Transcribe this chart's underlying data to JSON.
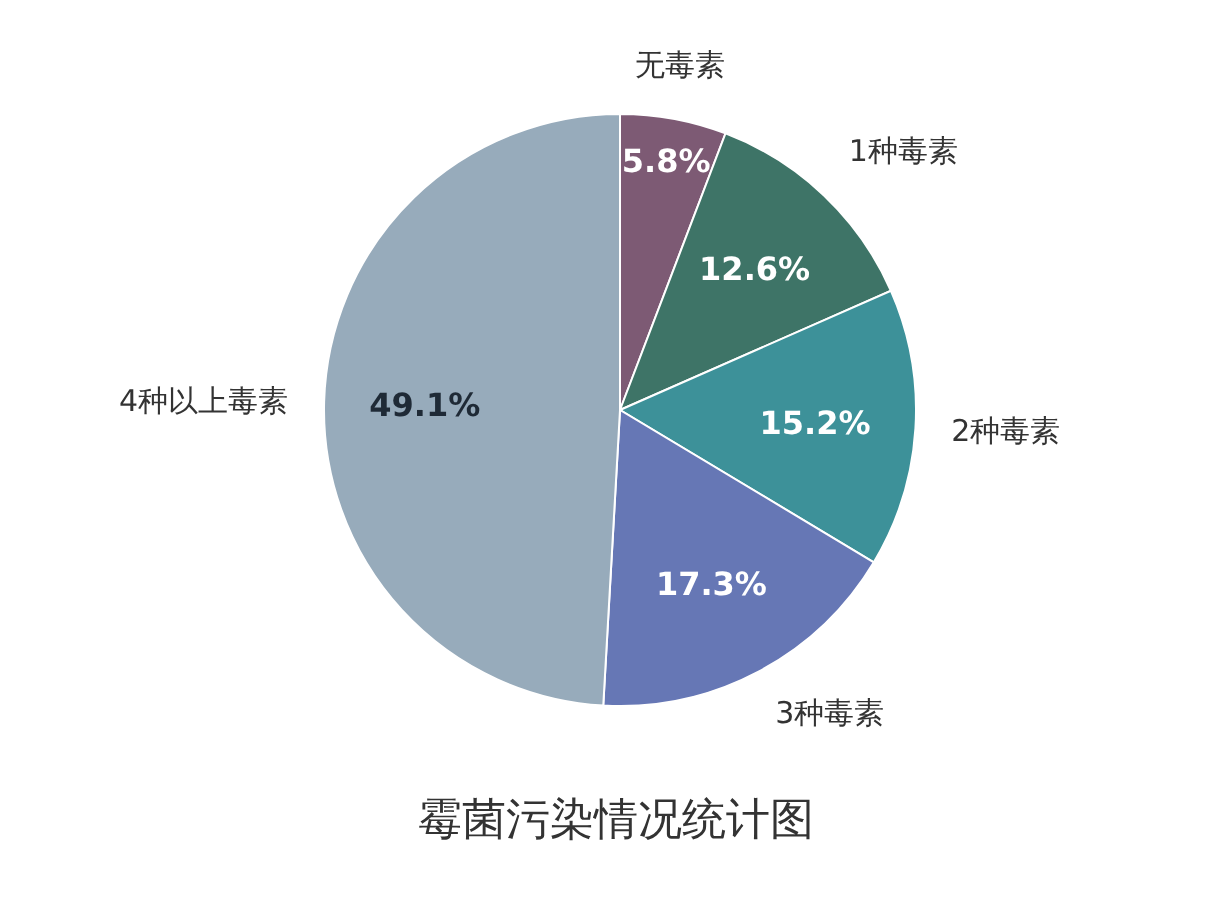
{
  "chart_data": {
    "type": "pie",
    "title": "霉菌污染情况统计图",
    "categories": [
      "无毒素",
      "1种毒素",
      "2种毒素",
      "3种毒素",
      "4种以上毒素"
    ],
    "values": [
      5.8,
      12.6,
      15.2,
      17.3,
      49.1
    ],
    "colors": [
      "#7d5a74",
      "#3e7467",
      "#3d9199",
      "#6677b5",
      "#97abbb"
    ],
    "value_labels": [
      "5.8%",
      "12.6%",
      "15.2%",
      "17.3%",
      "49.1%"
    ]
  }
}
